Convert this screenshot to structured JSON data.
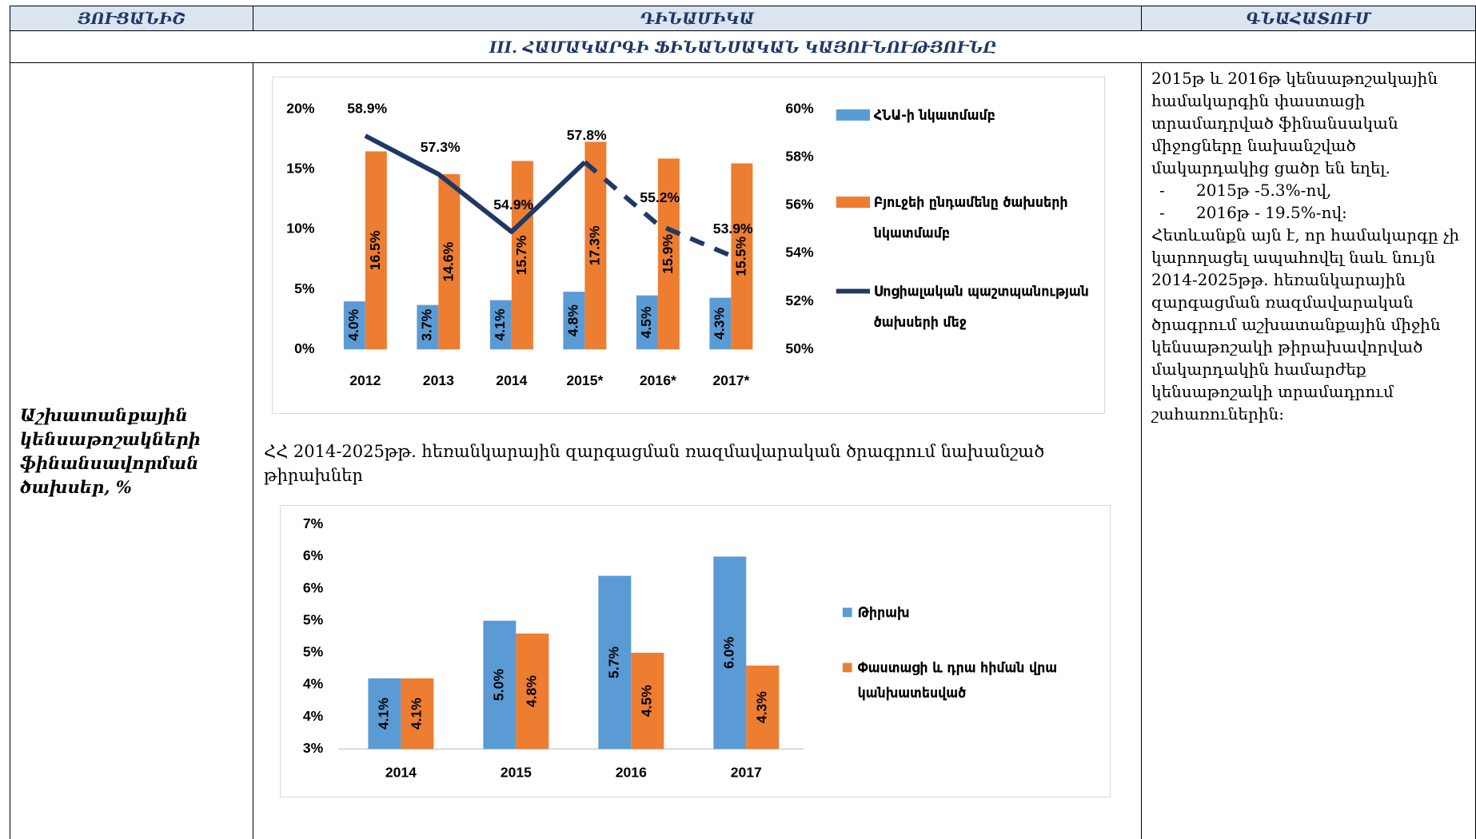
{
  "header": {
    "columns": [
      "ՅՈՒՑԱՆԻՇ",
      "ԴԻՆԱՄԻԿԱ",
      "ԳՆԱՀԱՏՈՒՄ"
    ]
  },
  "section_title": "III. ՀԱՄԱԿԱՐԳԻ ՖԻՆԱՆՍԱԿԱՆ ԿԱՅՈՒՆՈՒԹՅՈՒՆԸ",
  "row": {
    "indicator": "Աշխատանքային կենսաթոշակների ֆինանսավորման ծախսեր, %",
    "caption": "ՀՀ 2014-2025թթ. հեռանկարային զարգացման ռազմավարական ծրագրում նախանշած թիրախներ",
    "assessment": {
      "intro": "2015թ և 2016թ կենսաթոշակային համակարգին փաստացի տրամադրված ֆինանսական միջոցները նախանշված մակարդակից ցածր են եղել.",
      "items": [
        "2015թ -5.3%-ով,",
        "2016թ - 19.5%-ով:"
      ],
      "conclusion": "Հետևանքն այն է, որ համակարգը չի կարողացել ապահովել նաև նույն 2014-2025թթ. հեռանկարային զարգացման ռազմավարական ծրագրում աշխատանքային միջին կենսաթոշակի թիրախավորված մակարդակին համարժեք կենսաթոշակի տրամադրում շահառուներին:"
    }
  },
  "chart_data": [
    {
      "type": "combo",
      "categories": [
        "2012",
        "2013",
        "2014",
        "2015*",
        "2016*",
        "2017*"
      ],
      "series": [
        {
          "name": "ՀՆԱ-ի նկատմամբ",
          "type": "bar",
          "color": "#5b9bd5",
          "values": [
            4.0,
            3.7,
            4.1,
            4.8,
            4.5,
            4.3
          ],
          "value_labels": [
            "4.0%",
            "3.7%",
            "4.1%",
            "4.8%",
            "4.5%",
            "4.3%"
          ]
        },
        {
          "name": "Բյուջեի ընդամենը ծախսերի նկատմամբ",
          "type": "bar",
          "color": "#ed7d31",
          "values": [
            16.5,
            14.6,
            15.7,
            17.3,
            15.9,
            15.5
          ],
          "value_labels": [
            "16.5%",
            "14.6%",
            "15.7%",
            "17.3%",
            "15.9%",
            "15.5%"
          ]
        },
        {
          "name": "Սոցիալական պաշտպանության ծախսերի մեջ",
          "type": "line",
          "axis": "y2",
          "color": "#1f3864",
          "dashed_from": "2015*",
          "values": [
            58.9,
            57.3,
            54.9,
            57.8,
            55.2,
            53.9
          ],
          "value_labels": [
            "58.9%",
            "57.3%",
            "54.9%",
            "57.8%",
            "55.2%",
            "53.9%"
          ]
        }
      ],
      "ylim": [
        0,
        20
      ],
      "yticks": [
        {
          "value": 0,
          "label": "0%"
        },
        {
          "value": 5,
          "label": "5%"
        },
        {
          "value": 10,
          "label": "10%"
        },
        {
          "value": 15,
          "label": "15%"
        },
        {
          "value": 20,
          "label": "20%"
        }
      ],
      "y2lim": [
        50,
        60
      ],
      "y2ticks": [
        {
          "value": 50,
          "label": "50%"
        },
        {
          "value": 52,
          "label": "52%"
        },
        {
          "value": 54,
          "label": "54%"
        },
        {
          "value": 56,
          "label": "56%"
        },
        {
          "value": 58,
          "label": "58%"
        },
        {
          "value": 60,
          "label": "60%"
        }
      ],
      "legend": "right"
    },
    {
      "type": "bar",
      "categories": [
        "2014",
        "2015",
        "2016",
        "2017"
      ],
      "series": [
        {
          "name": "Թիրախ",
          "type": "bar",
          "color": "#5b9bd5",
          "values": [
            4.1,
            5.0,
            5.7,
            6.0
          ],
          "value_labels": [
            "4.1%",
            "5.0%",
            "5.7%",
            "6.0%"
          ]
        },
        {
          "name": "Փաստացի և դրա հիման վրա կանխատեսված",
          "type": "bar",
          "color": "#ed7d31",
          "values": [
            4.1,
            4.8,
            4.5,
            4.3
          ],
          "value_labels": [
            "4.1%",
            "4.8%",
            "4.5%",
            "4.3%"
          ]
        }
      ],
      "ylim": [
        3,
        6.5
      ],
      "yticks": [
        {
          "value": 3,
          "label": "3%"
        },
        {
          "value": 3.5,
          "label": "4%"
        },
        {
          "value": 4,
          "label": "4%"
        },
        {
          "value": 4.5,
          "label": "5%"
        },
        {
          "value": 5,
          "label": "5%"
        },
        {
          "value": 5.5,
          "label": "6%"
        },
        {
          "value": 6,
          "label": "6%"
        },
        {
          "value": 6.5,
          "label": "7%"
        }
      ],
      "legend": "right"
    }
  ]
}
